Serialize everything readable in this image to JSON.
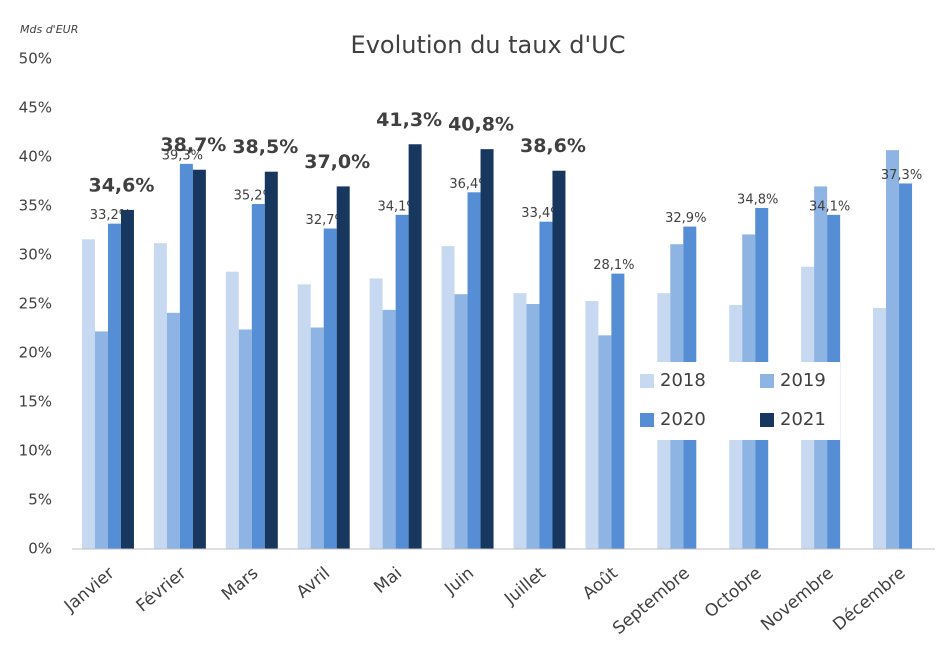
{
  "chart_data": {
    "type": "bar",
    "title": "Evolution du taux d'UC",
    "y_unit_label": "Mds d'EUR",
    "categories": [
      "Janvier",
      "Février",
      "Mars",
      "Avril",
      "Mai",
      "Juin",
      "Juillet",
      "Août",
      "Septembre",
      "Octobre",
      "Novembre",
      "Décembre"
    ],
    "series": [
      {
        "name": "2018",
        "color": "#c6d9f1",
        "values": [
          31.6,
          31.2,
          28.3,
          27.0,
          27.6,
          30.9,
          26.1,
          25.3,
          26.1,
          24.9,
          28.8,
          24.6
        ]
      },
      {
        "name": "2019",
        "color": "#8eb4e3",
        "values": [
          22.2,
          24.1,
          22.4,
          22.6,
          24.4,
          26.0,
          25.0,
          21.8,
          31.1,
          32.1,
          37.0,
          40.7
        ]
      },
      {
        "name": "2020",
        "color": "#558ed5",
        "values": [
          33.2,
          39.3,
          35.2,
          32.7,
          34.1,
          36.4,
          33.4,
          28.1,
          32.9,
          34.8,
          34.1,
          37.3
        ],
        "value_labels": [
          "33,2%",
          "39,3%",
          "35,2%",
          "32,7%",
          "34,1%",
          "36,4%",
          "33,4%",
          "28,1%",
          "32,9%",
          "34,8%",
          "34,1%",
          "37,3%"
        ]
      },
      {
        "name": "2021",
        "color": "#17375e",
        "values": [
          34.6,
          38.7,
          38.5,
          37.0,
          41.3,
          40.8,
          38.6,
          null,
          null,
          null,
          null,
          null
        ],
        "value_labels": [
          "34,6%",
          "38,7%",
          "38,5%",
          "37,0%",
          "41,3%",
          "40,8%",
          "38,6%",
          null,
          null,
          null,
          null,
          null
        ]
      }
    ],
    "ylim": [
      0,
      50
    ],
    "yticks": [
      {
        "value": 0,
        "label": "0%"
      },
      {
        "value": 5,
        "label": "5%"
      },
      {
        "value": 10,
        "label": "10%"
      },
      {
        "value": 15,
        "label": "15%"
      },
      {
        "value": 20,
        "label": "20%"
      },
      {
        "value": 25,
        "label": "25%"
      },
      {
        "value": 30,
        "label": "30%"
      },
      {
        "value": 35,
        "label": "35%"
      },
      {
        "value": 40,
        "label": "40%"
      },
      {
        "value": 45,
        "label": "45%"
      },
      {
        "value": 50,
        "label": "50%"
      }
    ],
    "grid": false,
    "legend": "center-right"
  }
}
